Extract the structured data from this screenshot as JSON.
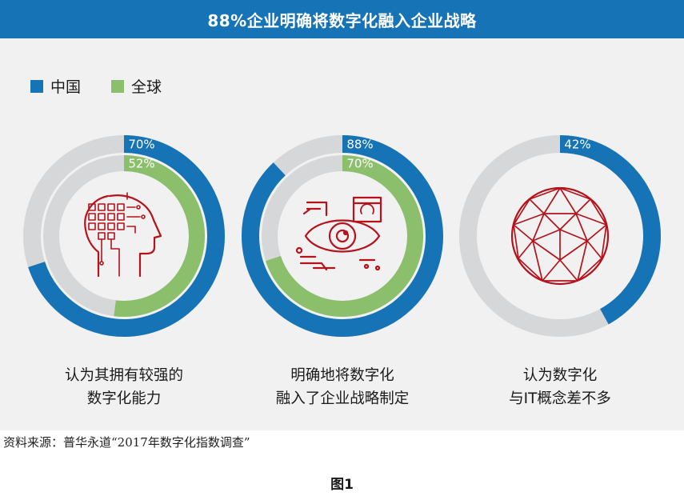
{
  "header": {
    "title": "88%企业明确将数字化融入企业战略"
  },
  "legend": [
    {
      "label": "中国",
      "color": "#1674b6"
    },
    {
      "label": "全球",
      "color": "#8cbf6c"
    }
  ],
  "colors": {
    "track": "#d6d7d9",
    "icon": "#b5121b",
    "china": "#1674b6",
    "global": "#8cbf6c"
  },
  "chart_data": {
    "type": "donut",
    "series": [
      {
        "name": "中国",
        "values": [
          70,
          88,
          42
        ]
      },
      {
        "name": "全球",
        "values": [
          52,
          70,
          null
        ]
      }
    ],
    "categories": [
      "认为其拥有较强的数字化能力",
      "明确地将数字化融入了企业战略制定",
      "认为数字化与IT概念差不多"
    ],
    "data_labels": [
      [
        "70%",
        "52%"
      ],
      [
        "88%",
        "70%"
      ],
      [
        "42%"
      ]
    ],
    "icons": [
      "head-circuit-icon",
      "eye-icon",
      "geodesic-sphere-icon"
    ]
  },
  "captions": [
    {
      "line1": "认为其拥有较强的",
      "line2": "数字化能力"
    },
    {
      "line1": "明确地将数字化",
      "line2": "融入了企业战略制定"
    },
    {
      "line1": "认为数字化",
      "line2": "与IT概念差不多"
    }
  ],
  "source": "资料来源：普华永道“2017年数字化指数调查”",
  "figure_label": "图1"
}
